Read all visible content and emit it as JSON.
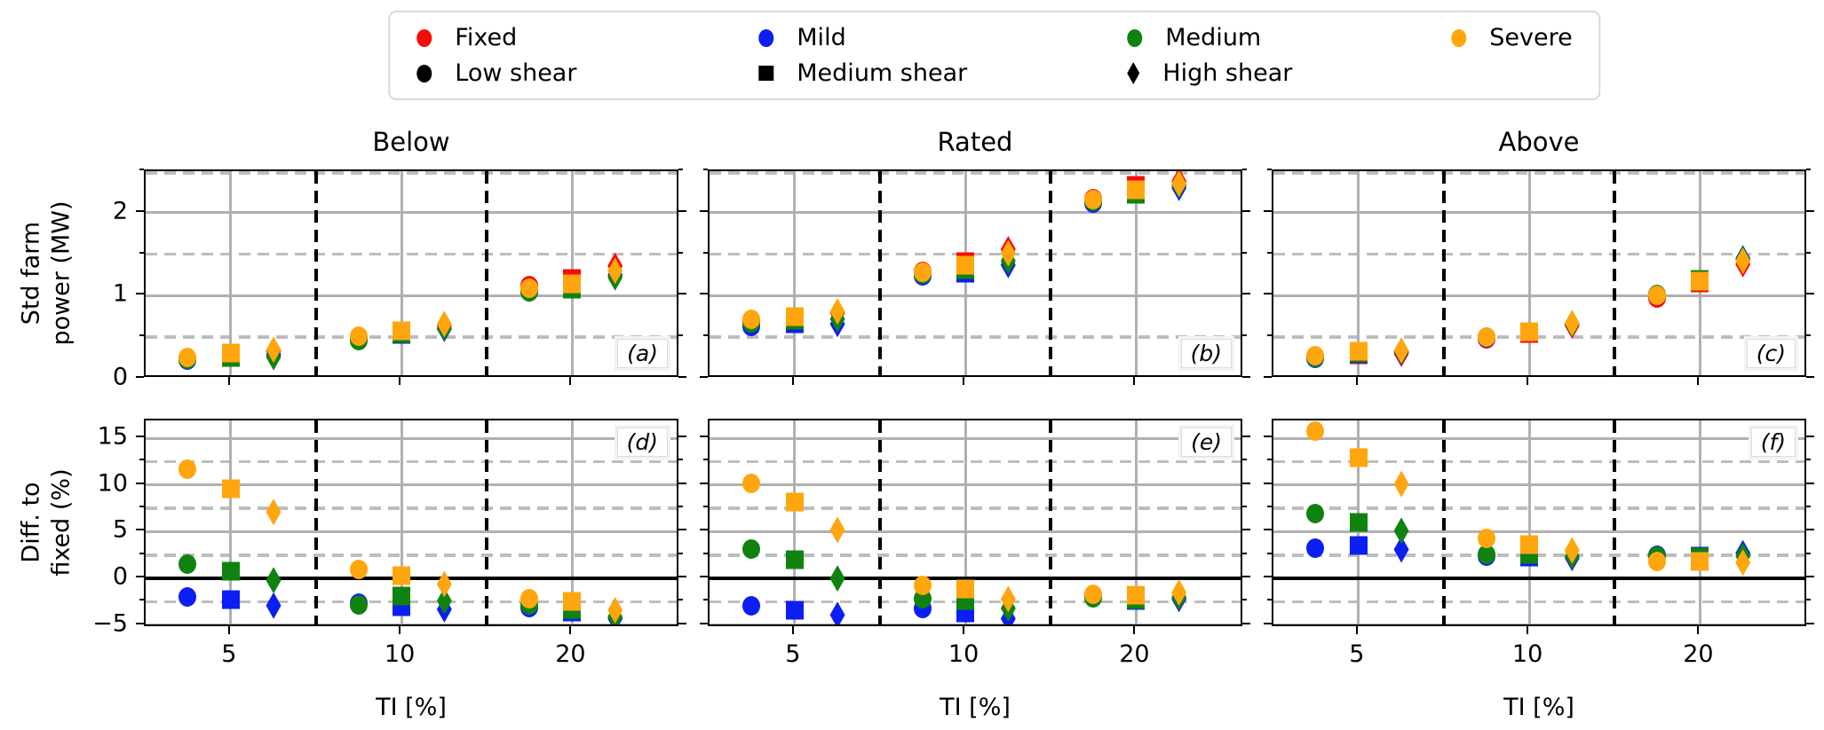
{
  "legend": {
    "color_entries": [
      {
        "label": "Fixed",
        "series": "fixed",
        "color": "#f60c0a",
        "marker": "circle"
      },
      {
        "label": "Mild",
        "series": "mild",
        "color": "#0c1ff2",
        "marker": "circle"
      },
      {
        "label": "Medium",
        "series": "medium",
        "color": "#108210",
        "marker": "circle"
      },
      {
        "label": "Severe",
        "series": "severe",
        "color": "#ffa60e",
        "marker": "circle"
      }
    ],
    "marker_entries": [
      {
        "label": "Low shear",
        "shear": "low",
        "color": "#000000",
        "marker": "circle"
      },
      {
        "label": "Medium shear",
        "shear": "medium",
        "color": "#000000",
        "marker": "square"
      },
      {
        "label": "High shear",
        "shear": "high",
        "color": "#000000",
        "marker": "diamond"
      }
    ]
  },
  "chart_data": {
    "type": "scatter",
    "x_scale": "log",
    "xlim": [
      3.54,
      31
    ],
    "x_ticks": [
      5,
      10,
      20
    ],
    "x_label": "TI [%]",
    "group_separators": [
      7.07,
      14.14
    ],
    "grid": "on",
    "colors": {
      "fixed": "#f60c0a",
      "mild": "#0c1ff2",
      "medium": "#108210",
      "severe": "#ffa60e"
    },
    "markers": {
      "low": "circle",
      "medium": "square",
      "high": "diamond"
    },
    "ti_groups": {
      "low": [
        4.2,
        8.4,
        16.8
      ],
      "medium": [
        5,
        10,
        20
      ],
      "high": [
        5.95,
        11.9,
        23.8
      ]
    },
    "rows": [
      {
        "ylabel": "Std farm\npower (MW)",
        "ylim": [
          0,
          2.5
        ],
        "ytick_labels": [
          0,
          1,
          2
        ],
        "solid_grid": [
          1,
          2
        ],
        "dashed_grid": [
          0.5,
          1.5,
          2.5
        ],
        "minor_ticks": [
          0.5,
          1.5,
          2.5
        ],
        "zero_line": false,
        "letter_pos": "bottom-right",
        "series_order": [
          "fixed",
          "mild",
          "medium",
          "severe"
        ],
        "panels": [
          {
            "title": "Below",
            "letter": "(a)",
            "series": {
              "fixed": {
                "low": [
                  0.25,
                  0.49,
                  1.12
                ],
                "medium": [
                  0.3,
                  0.57,
                  1.21
                ],
                "high": [
                  0.33,
                  0.64,
                  1.36
                ]
              },
              "mild": {
                "low": [
                  0.22,
                  0.47,
                  1.05
                ],
                "medium": [
                  0.28,
                  0.53,
                  1.12
                ],
                "high": [
                  0.29,
                  0.6,
                  1.25
                ]
              },
              "medium": {
                "low": [
                  0.23,
                  0.46,
                  1.05
                ],
                "medium": [
                  0.26,
                  0.55,
                  1.08
                ],
                "high": [
                  0.26,
                  0.61,
                  1.22
                ]
              },
              "severe": {
                "low": [
                  0.26,
                  0.51,
                  1.09
                ],
                "medium": [
                  0.31,
                  0.58,
                  1.14
                ],
                "high": [
                  0.35,
                  0.66,
                  1.3
                ]
              }
            }
          },
          {
            "title": "Rated",
            "letter": "(b)",
            "series": {
              "fixed": {
                "low": [
                  0.71,
                  1.29,
                  2.17
                ],
                "medium": [
                  0.74,
                  1.41,
                  2.33
                ],
                "high": [
                  0.79,
                  1.56,
                  2.38
                ]
              },
              "mild": {
                "low": [
                  0.63,
                  1.24,
                  2.12
                ],
                "medium": [
                  0.66,
                  1.27,
                  2.24
                ],
                "high": [
                  0.66,
                  1.37,
                  2.3
                ]
              },
              "medium": {
                "low": [
                  0.67,
                  1.26,
                  2.14
                ],
                "medium": [
                  0.7,
                  1.31,
                  2.22
                ],
                "high": [
                  0.72,
                  1.42,
                  2.33
                ]
              },
              "severe": {
                "low": [
                  0.72,
                  1.28,
                  2.16
                ],
                "medium": [
                  0.75,
                  1.37,
                  2.28
                ],
                "high": [
                  0.81,
                  1.51,
                  2.35
                ]
              }
            }
          },
          {
            "title": "Above",
            "letter": "(c)",
            "series": {
              "fixed": {
                "low": [
                  0.26,
                  0.48,
                  0.97
                ],
                "medium": [
                  0.29,
                  0.55,
                  1.15
                ],
                "high": [
                  0.3,
                  0.64,
                  1.38
                ]
              },
              "mild": {
                "low": [
                  0.25,
                  0.49,
                  1.0
                ],
                "medium": [
                  0.3,
                  0.57,
                  1.19
                ],
                "high": [
                  0.32,
                  0.66,
                  1.45
                ]
              },
              "medium": {
                "low": [
                  0.26,
                  0.5,
                  1.01
                ],
                "medium": [
                  0.31,
                  0.57,
                  1.2
                ],
                "high": [
                  0.33,
                  0.66,
                  1.44
                ]
              },
              "severe": {
                "low": [
                  0.28,
                  0.5,
                  1.0
                ],
                "medium": [
                  0.33,
                  0.57,
                  1.18
                ],
                "high": [
                  0.34,
                  0.67,
                  1.42
                ]
              }
            }
          }
        ]
      },
      {
        "ylabel": "Diff. to\nfixed (%)",
        "ylim": [
          -5.3,
          16.9
        ],
        "ytick_labels": [
          -5,
          0,
          5,
          10,
          15
        ],
        "solid_grid": [
          -5,
          5,
          10,
          15
        ],
        "dashed_grid": [
          -2.5,
          2.5,
          7.5,
          12.5
        ],
        "minor_ticks": [
          -2.5,
          2.5,
          7.5,
          12.5
        ],
        "zero_line": true,
        "letter_pos": "top-right",
        "series_order": [
          "mild",
          "medium",
          "severe"
        ],
        "panels": [
          {
            "title": "",
            "letter": "(d)",
            "series": {
              "mild": {
                "low": [
                  -2.0,
                  -2.6,
                  -3.1
                ],
                "medium": [
                  -2.3,
                  -3.0,
                  -3.6
                ],
                "high": [
                  -2.9,
                  -3.3,
                  -4.3
                ]
              },
              "medium": {
                "low": [
                  1.5,
                  -2.8,
                  -2.8
                ],
                "medium": [
                  0.8,
                  -1.9,
                  -3.3
                ],
                "high": [
                  -0.2,
                  -2.4,
                  -4.1
                ]
              },
              "severe": {
                "low": [
                  11.7,
                  0.95,
                  -2.2
                ],
                "medium": [
                  9.6,
                  0.3,
                  -2.5
                ],
                "high": [
                  7.1,
                  -0.6,
                  -3.4
                ]
              }
            }
          },
          {
            "title": "",
            "letter": "(e)",
            "series": {
              "mild": {
                "low": [
                  -2.9,
                  -3.2,
                  -1.9
                ],
                "medium": [
                  -3.4,
                  -3.7,
                  -2.4
                ],
                "high": [
                  -3.9,
                  -4.3,
                  -2.2
                ]
              },
              "medium": {
                "low": [
                  3.1,
                  -2.2,
                  -2.1
                ],
                "medium": [
                  2.0,
                  -2.4,
                  -2.3
                ],
                "high": [
                  0.0,
                  -3.2,
                  -2.0
                ]
              },
              "severe": {
                "low": [
                  10.2,
                  -0.7,
                  -1.7
                ],
                "medium": [
                  8.2,
                  -1.1,
                  -1.8
                ],
                "high": [
                  5.2,
                  -2.2,
                  -1.5
                ]
              }
            }
          },
          {
            "title": "",
            "letter": "(f)",
            "series": {
              "mild": {
                "low": [
                  3.2,
                  2.4,
                  2.5
                ],
                "medium": [
                  3.5,
                  2.3,
                  2.4
                ],
                "high": [
                  3.1,
                  2.2,
                  2.7
                ]
              },
              "medium": {
                "low": [
                  6.9,
                  2.6,
                  2.4
                ],
                "medium": [
                  6.0,
                  2.6,
                  2.3
                ],
                "high": [
                  5.1,
                  2.4,
                  2.4
                ]
              },
              "severe": {
                "low": [
                  15.8,
                  4.3,
                  1.8
                ],
                "medium": [
                  12.9,
                  3.6,
                  1.8
                ],
                "high": [
                  10.1,
                  3.0,
                  1.7
                ]
              }
            }
          }
        ]
      }
    ]
  }
}
